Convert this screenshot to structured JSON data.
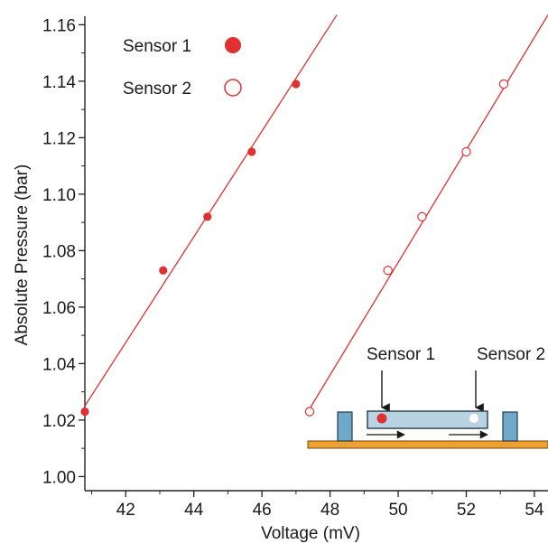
{
  "chart_data": {
    "type": "scatter",
    "xlabel": "Voltage (mV)",
    "ylabel": "Absolute Pressure (bar)",
    "xlim": [
      40.8,
      54.4
    ],
    "ylim": [
      0.995,
      1.163
    ],
    "xticks": [
      42,
      44,
      46,
      48,
      50,
      52,
      54
    ],
    "yticks": [
      1.0,
      1.02,
      1.04,
      1.06,
      1.08,
      1.1,
      1.12,
      1.14,
      1.16
    ],
    "xtick_labels": [
      "42",
      "44",
      "46",
      "48",
      "50",
      "52",
      "54"
    ],
    "ytick_labels": [
      "1.00",
      "1.02",
      "1.04",
      "1.06",
      "1.08",
      "1.10",
      "1.12",
      "1.14",
      "1.16"
    ],
    "grid": false,
    "legend_position": "top-left",
    "series": [
      {
        "name": "Sensor 1",
        "marker": "filled-circle",
        "color": "#e03030",
        "x": [
          40.8,
          43.1,
          44.4,
          45.7,
          47.0
        ],
        "y": [
          1.023,
          1.073,
          1.092,
          1.115,
          1.139
        ],
        "fit_line": {
          "x": [
            40.8,
            48.2
          ],
          "y": [
            1.025,
            1.1635
          ]
        }
      },
      {
        "name": "Sensor 2",
        "marker": "open-circle",
        "color": "#e03030",
        "x": [
          47.4,
          49.7,
          50.7,
          52.0,
          53.1
        ],
        "y": [
          1.023,
          1.073,
          1.092,
          1.115,
          1.139
        ],
        "fit_line": {
          "x": [
            47.4,
            54.4
          ],
          "y": [
            1.024,
            1.1635
          ]
        }
      }
    ],
    "inset": {
      "labels": [
        "Sensor 1",
        "Sensor 2"
      ],
      "colors": {
        "base": "#f0a030",
        "base_outline": "#6b4a10",
        "block": "#6fa8c8",
        "channel": "#b8d4e4",
        "outline": "#2b3a46",
        "dot": "#e03030"
      }
    }
  }
}
